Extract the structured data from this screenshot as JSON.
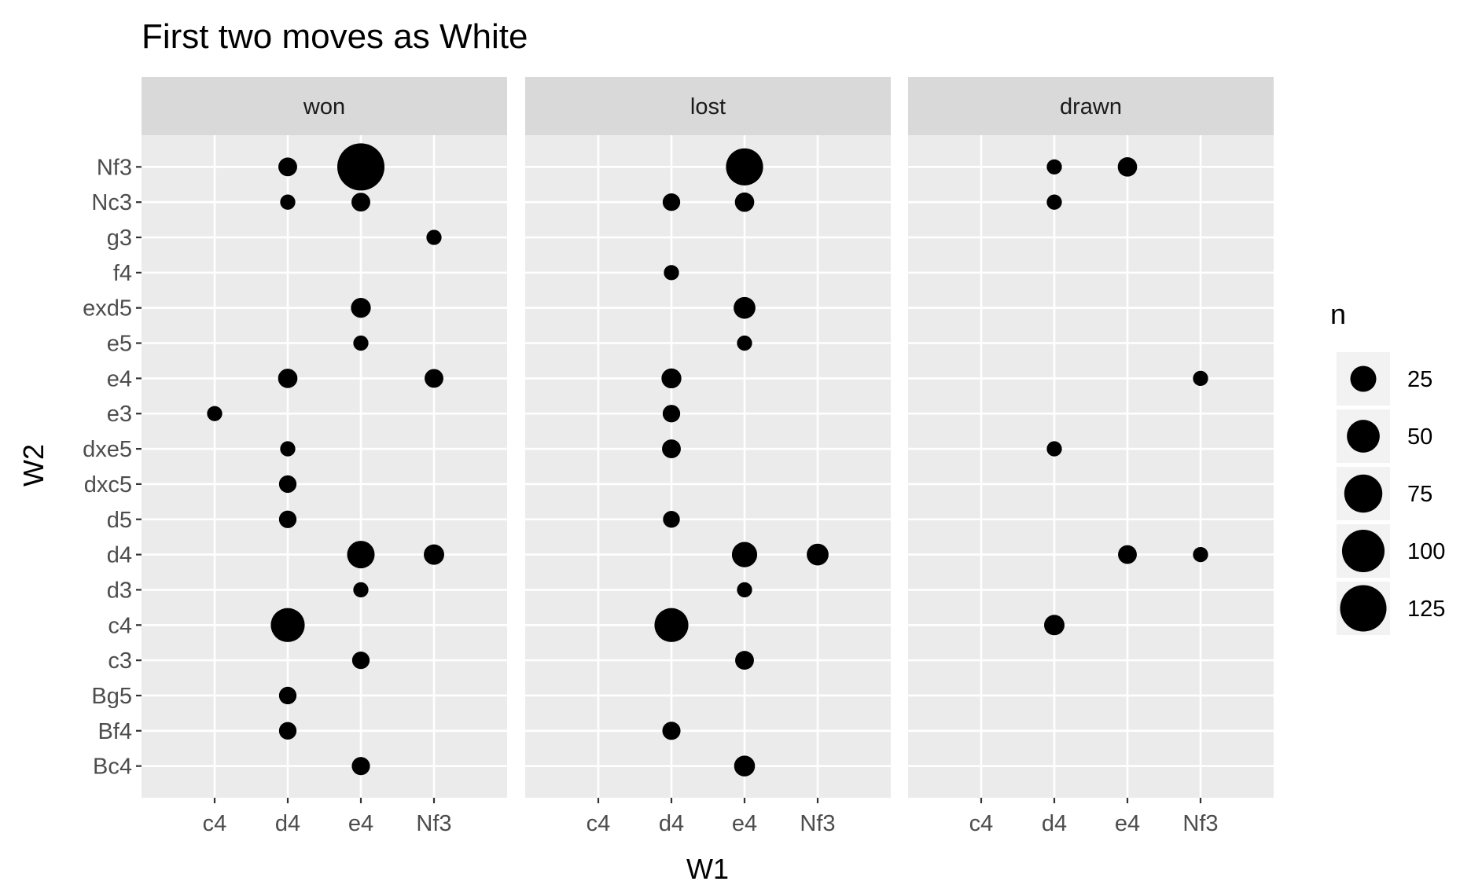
{
  "chart_data": {
    "type": "scatter",
    "title": "First two moves as White",
    "xlabel": "W1",
    "ylabel": "W2",
    "facets": [
      "won",
      "lost",
      "drawn"
    ],
    "x_categories": [
      "c4",
      "d4",
      "e4",
      "Nf3"
    ],
    "y_categories": [
      "Bc4",
      "Bf4",
      "Bg5",
      "c3",
      "c4",
      "d3",
      "d4",
      "d5",
      "dxc5",
      "dxe5",
      "e3",
      "e4",
      "e5",
      "exd5",
      "f4",
      "g3",
      "Nc3",
      "Nf3"
    ],
    "size_variable": "n",
    "legend": {
      "title": "n",
      "breaks": [
        25,
        50,
        75,
        100,
        125
      ],
      "labels": [
        "25",
        "50",
        "75",
        "100",
        "125"
      ],
      "position": "right"
    },
    "grid": true,
    "points": [
      {
        "facet": "won",
        "x": "d4",
        "y": "Nf3",
        "n": 8
      },
      {
        "facet": "won",
        "x": "e4",
        "y": "Nf3",
        "n": 130
      },
      {
        "facet": "won",
        "x": "d4",
        "y": "Nc3",
        "n": 3
      },
      {
        "facet": "won",
        "x": "e4",
        "y": "Nc3",
        "n": 8
      },
      {
        "facet": "won",
        "x": "Nf3",
        "y": "g3",
        "n": 3
      },
      {
        "facet": "won",
        "x": "e4",
        "y": "exd5",
        "n": 10
      },
      {
        "facet": "won",
        "x": "e4",
        "y": "e5",
        "n": 3
      },
      {
        "facet": "won",
        "x": "d4",
        "y": "e4",
        "n": 9
      },
      {
        "facet": "won",
        "x": "Nf3",
        "y": "e4",
        "n": 8
      },
      {
        "facet": "won",
        "x": "c4",
        "y": "e3",
        "n": 3
      },
      {
        "facet": "won",
        "x": "d4",
        "y": "dxe5",
        "n": 3
      },
      {
        "facet": "won",
        "x": "d4",
        "y": "dxc5",
        "n": 6
      },
      {
        "facet": "won",
        "x": "d4",
        "y": "d5",
        "n": 6
      },
      {
        "facet": "won",
        "x": "e4",
        "y": "d4",
        "n": 30
      },
      {
        "facet": "won",
        "x": "Nf3",
        "y": "d4",
        "n": 11
      },
      {
        "facet": "won",
        "x": "e4",
        "y": "d3",
        "n": 3
      },
      {
        "facet": "won",
        "x": "d4",
        "y": "c4",
        "n": 55
      },
      {
        "facet": "won",
        "x": "e4",
        "y": "c3",
        "n": 6
      },
      {
        "facet": "won",
        "x": "d4",
        "y": "Bg5",
        "n": 6
      },
      {
        "facet": "won",
        "x": "d4",
        "y": "Bf4",
        "n": 6
      },
      {
        "facet": "won",
        "x": "e4",
        "y": "Bc4",
        "n": 7
      },
      {
        "facet": "lost",
        "x": "e4",
        "y": "Nf3",
        "n": 70
      },
      {
        "facet": "lost",
        "x": "d4",
        "y": "Nc3",
        "n": 6
      },
      {
        "facet": "lost",
        "x": "e4",
        "y": "Nc3",
        "n": 9
      },
      {
        "facet": "lost",
        "x": "d4",
        "y": "f4",
        "n": 3
      },
      {
        "facet": "lost",
        "x": "e4",
        "y": "exd5",
        "n": 14
      },
      {
        "facet": "lost",
        "x": "e4",
        "y": "e5",
        "n": 3
      },
      {
        "facet": "lost",
        "x": "d4",
        "y": "e4",
        "n": 10
      },
      {
        "facet": "lost",
        "x": "d4",
        "y": "e3",
        "n": 6
      },
      {
        "facet": "lost",
        "x": "d4",
        "y": "dxe5",
        "n": 8
      },
      {
        "facet": "lost",
        "x": "d4",
        "y": "d5",
        "n": 5
      },
      {
        "facet": "lost",
        "x": "e4",
        "y": "d4",
        "n": 23
      },
      {
        "facet": "lost",
        "x": "Nf3",
        "y": "d4",
        "n": 14
      },
      {
        "facet": "lost",
        "x": "e4",
        "y": "d3",
        "n": 3
      },
      {
        "facet": "lost",
        "x": "d4",
        "y": "c4",
        "n": 55
      },
      {
        "facet": "lost",
        "x": "e4",
        "y": "c3",
        "n": 8
      },
      {
        "facet": "lost",
        "x": "d4",
        "y": "Bf4",
        "n": 7
      },
      {
        "facet": "lost",
        "x": "e4",
        "y": "Bc4",
        "n": 12
      },
      {
        "facet": "drawn",
        "x": "d4",
        "y": "Nf3",
        "n": 3
      },
      {
        "facet": "drawn",
        "x": "e4",
        "y": "Nf3",
        "n": 9
      },
      {
        "facet": "drawn",
        "x": "d4",
        "y": "Nc3",
        "n": 3
      },
      {
        "facet": "drawn",
        "x": "Nf3",
        "y": "e4",
        "n": 3
      },
      {
        "facet": "drawn",
        "x": "d4",
        "y": "dxe5",
        "n": 3
      },
      {
        "facet": "drawn",
        "x": "e4",
        "y": "d4",
        "n": 8
      },
      {
        "facet": "drawn",
        "x": "Nf3",
        "y": "d4",
        "n": 3
      },
      {
        "facet": "drawn",
        "x": "d4",
        "y": "c4",
        "n": 11
      }
    ]
  }
}
